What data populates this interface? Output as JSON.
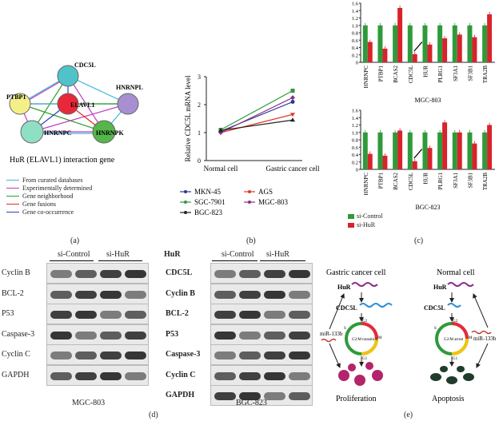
{
  "panel_labels": {
    "a": "(a)",
    "b": "(b)",
    "c": "(c)",
    "d": "(d)",
    "e": "(e)"
  },
  "network": {
    "nodes": [
      "CDC5L",
      "PTBP1",
      "HNRNPL",
      "ELAVL1",
      "HNRNPC",
      "HNRNPK"
    ],
    "caption": "HuR (ELAVL1) interaction gene",
    "legend": [
      {
        "label": "From curated databases",
        "color": "#39b8d8"
      },
      {
        "label": "Experimentally determined",
        "color": "#c23bc2"
      },
      {
        "label": "Gene neighborhood",
        "color": "#2e9e2e"
      },
      {
        "label": "Gene fusions",
        "color": "#e12b2b"
      },
      {
        "label": "Gene co-occurrence",
        "color": "#2f3ec4"
      }
    ]
  },
  "chart_data": [
    {
      "type": "line",
      "ylabel": "Relative CDC5L mRNA level",
      "categories": [
        "Normal cell",
        "Gastric cancer cell"
      ],
      "ylim": [
        0,
        3
      ],
      "yticks": [
        "0",
        "1",
        "2",
        "3"
      ],
      "series": [
        {
          "name": "MKN-45",
          "color": "#2b3a8c",
          "marker": "circle",
          "values": [
            1.05,
            2.1
          ]
        },
        {
          "name": "AGS",
          "color": "#e03a2b",
          "marker": "tri-down",
          "values": [
            1.0,
            1.65
          ]
        },
        {
          "name": "SGC-7901",
          "color": "#2e9a3b",
          "marker": "square",
          "values": [
            1.1,
            2.5
          ]
        },
        {
          "name": "MGC-803",
          "color": "#8b2f8b",
          "marker": "diamond",
          "values": [
            1.0,
            2.25
          ]
        },
        {
          "name": "BGC-823",
          "color": "#222222",
          "marker": "tri-up",
          "values": [
            1.08,
            1.45
          ]
        }
      ]
    },
    {
      "type": "bar",
      "title": "MGC-803",
      "categories": [
        "HNRNPC",
        "PTBP1",
        "BCAS2",
        "CDC5L",
        "HUR",
        "PLRG1",
        "SF3A1",
        "SF3B1",
        "TRA2B"
      ],
      "ylim": [
        0,
        1.6
      ],
      "yticks": [
        "0",
        "0.2",
        "0.4",
        "0.6",
        "0.8",
        "1.0",
        "1.2",
        "1.4",
        "1.6"
      ],
      "series": [
        {
          "name": "si-Control",
          "color": "#2e9a3b",
          "values": [
            1,
            1,
            1,
            1,
            1,
            1,
            1,
            1,
            1
          ]
        },
        {
          "name": "si-HuR",
          "color": "#d8232a",
          "values": [
            0.55,
            0.37,
            1.47,
            0.22,
            0.48,
            0.65,
            0.75,
            0.68,
            1.3
          ]
        }
      ]
    },
    {
      "type": "bar",
      "title": "BGC-823",
      "categories": [
        "HNRNPC",
        "PTBP1",
        "BCAS2",
        "CDC5L",
        "HUR",
        "PLRG1",
        "SF3A1",
        "SF3B1",
        "TRA2B"
      ],
      "ylim": [
        0,
        1.6
      ],
      "yticks": [
        "0",
        "0.2",
        "0.4",
        "0.6",
        "0.8",
        "1.0",
        "1.2",
        "1.4",
        "1.6"
      ],
      "series": [
        {
          "name": "si-Control",
          "color": "#2e9a3b",
          "values": [
            1,
            1,
            1,
            1,
            1,
            1,
            1,
            1,
            1
          ]
        },
        {
          "name": "si-HuR",
          "color": "#d8232a",
          "values": [
            0.42,
            0.37,
            1.05,
            0.22,
            0.58,
            1.27,
            1.0,
            0.7,
            1.2
          ]
        }
      ]
    }
  ],
  "bar_legend": [
    "si-Control",
    "si-HuR"
  ],
  "blot_d": {
    "header_left": "si-Control",
    "header_right": "si-HuR",
    "rows": [
      "Cyclin B",
      "BCL-2",
      "P53",
      "Caspase-3",
      "Cyclin C",
      "GAPDH"
    ],
    "caption": "MGC-803"
  },
  "blot_d2": {
    "corner": "HuR",
    "header_left": "si-Control",
    "header_right": "si-HuR",
    "rows": [
      "CDC5L",
      "Cyclin B",
      "BCL-2",
      "P53",
      "Caspase-3",
      "Cyclin C",
      "GAPDH"
    ],
    "caption": "BGC-823"
  },
  "schematic": {
    "left_title": "Gastric cancer cell",
    "right_title": "Normal cell",
    "hur": "HuR",
    "cdc5l": "CDC5L",
    "mir": "miR-133b",
    "left_cycle": "G2/M transition",
    "right_cycle": "G2/M arrest",
    "phases": [
      "S",
      "G2",
      "M",
      "G1"
    ],
    "left_outcome": "Proliferation",
    "right_outcome": "Apoptosis"
  }
}
